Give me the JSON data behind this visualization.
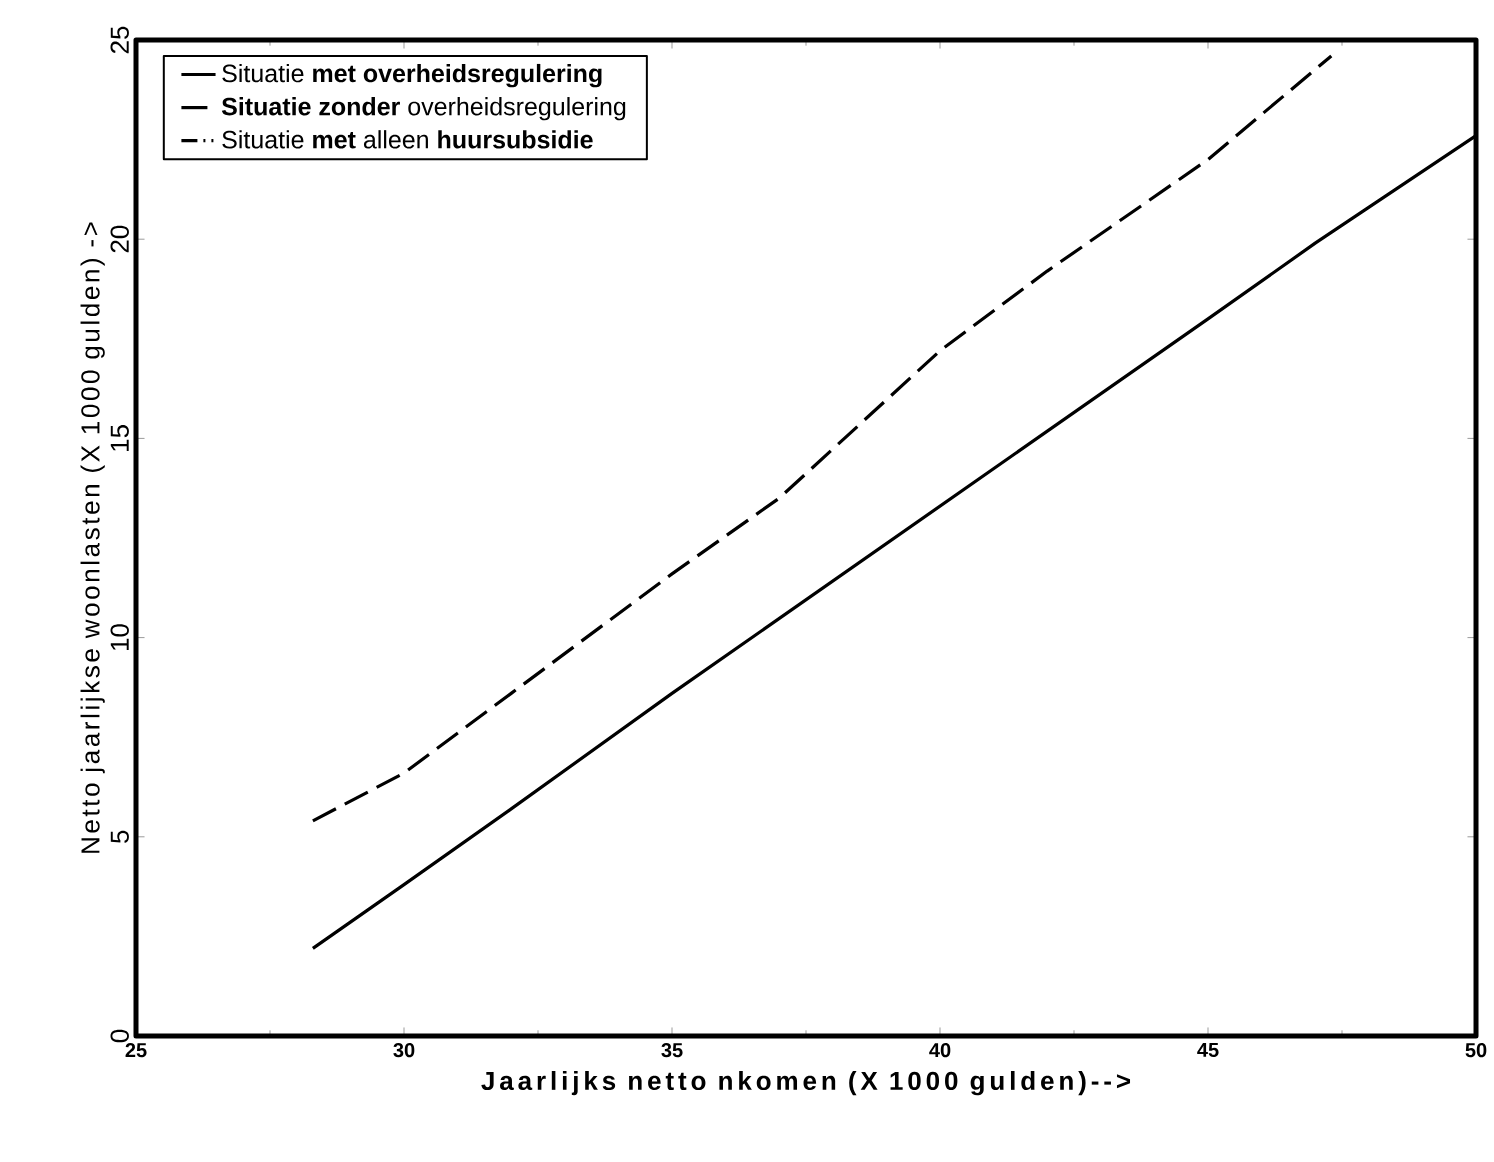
{
  "chart_data": {
    "type": "line",
    "xlabel": "Jaarlijks netto nkomen (X 1000 gulden)-->",
    "ylabel": "Netto jaarlijkse woonlasten (X 1000 gulden) ->",
    "xlim": [
      25,
      50
    ],
    "ylim": [
      0,
      25
    ],
    "xticks": [
      25,
      30,
      35,
      40,
      45,
      50
    ],
    "yticks": [
      0,
      5,
      10,
      15,
      20,
      25
    ],
    "grid": false,
    "legend": "top left",
    "marker": "none",
    "series": [
      {
        "name": "Situatie **met overheidsregulering**",
        "color": "#000000",
        "line_style": "solid",
        "x": [
          28.3,
          30,
          32,
          35,
          40,
          45,
          47,
          50
        ],
        "values": [
          2.2,
          3.8,
          5.7,
          8.6,
          13.3,
          18,
          19.9,
          22.6
        ]
      },
      {
        "name": "**Situatie zonder** overheidsregulering",
        "color": "#000000",
        "line_style": "dashed",
        "x": [
          28.3,
          30,
          32,
          35,
          37,
          40,
          42,
          45,
          47.3
        ],
        "values": [
          5.4,
          6.6,
          8.6,
          11.6,
          13.5,
          17.2,
          19.2,
          22,
          24.6
        ]
      },
      {
        "name": "Situatie **met** alleen **huursubsidie**",
        "color": "#000000",
        "line_style": "dotted"
      }
    ]
  }
}
